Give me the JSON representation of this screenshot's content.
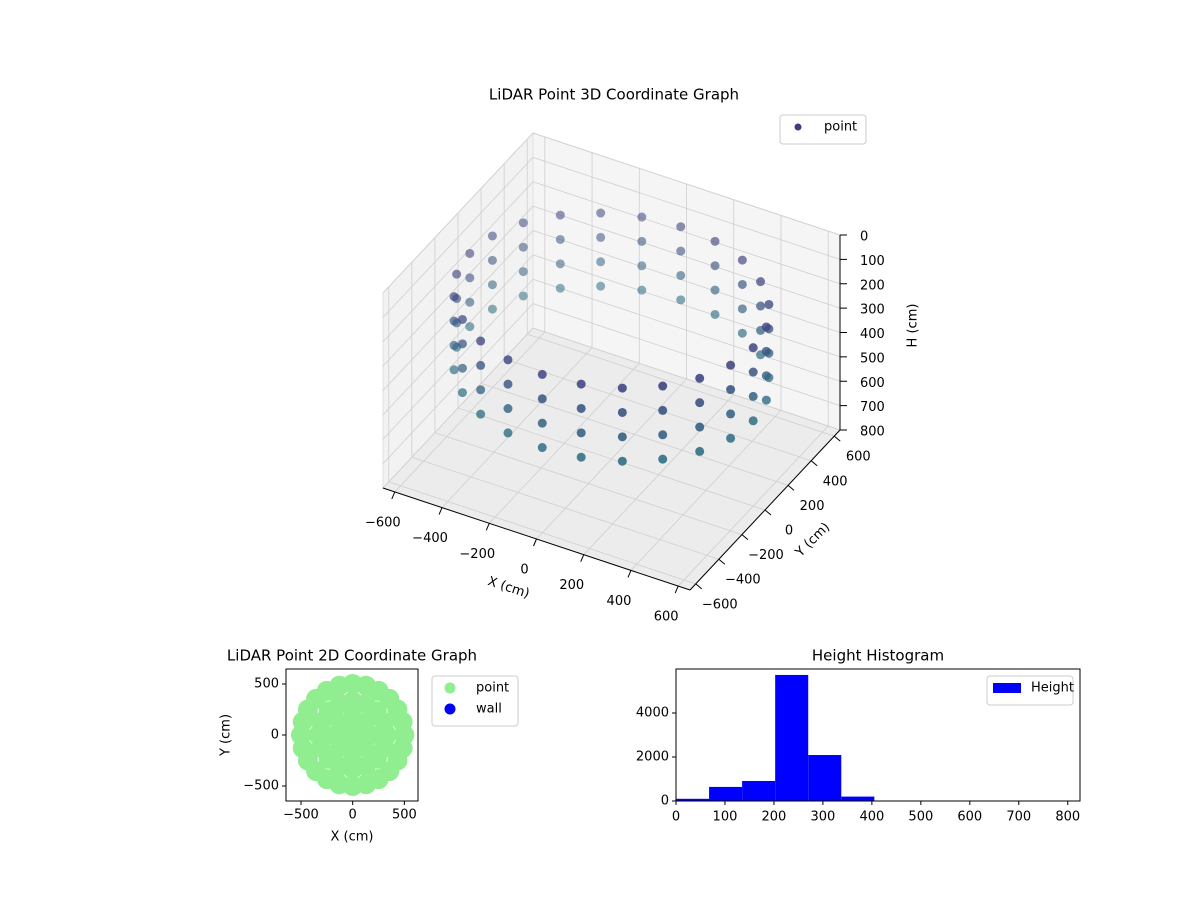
{
  "chart_data": [
    {
      "type": "scatter3d",
      "title": "LiDAR Point 3D Coordinate Graph",
      "xlabel": "X (cm)",
      "ylabel": "Y (cm)",
      "zlabel": "H (cm)",
      "xlim": [
        -650,
        650
      ],
      "ylim": [
        -650,
        650
      ],
      "zlim": [
        0,
        800
      ],
      "z_inverted": true,
      "grid": true,
      "legend": "upper right",
      "xticks": [
        {
          "value": -600,
          "label": "−600"
        },
        {
          "value": -400,
          "label": "−400"
        },
        {
          "value": -200,
          "label": "−200"
        },
        0,
        200,
        400,
        600
      ],
      "yticks": [
        {
          "value": -600,
          "label": "−600"
        },
        {
          "value": -400,
          "label": "−400"
        },
        {
          "value": -200,
          "label": "−200"
        },
        0,
        200,
        400,
        600
      ],
      "zticks": [
        0,
        100,
        200,
        300,
        400,
        500,
        600,
        700,
        800
      ],
      "cmap": [
        "#46317e",
        "#21a086"
      ],
      "series": [
        {
          "name": "point",
          "color": "#443983",
          "x": [
            600,
            580,
            520,
            424,
            300,
            155,
            0,
            -155,
            -300,
            -424,
            -520,
            -580,
            -600,
            -580,
            -520,
            -424,
            -300,
            -155,
            0,
            155,
            300,
            424,
            520,
            580,
            600,
            580,
            520,
            424,
            300,
            155,
            0,
            -155,
            -300,
            -424,
            -520,
            -580,
            -600,
            -580,
            -520,
            -424,
            -300,
            -155,
            0,
            155,
            300,
            424,
            520,
            580,
            600,
            580,
            520,
            424,
            300,
            155,
            0,
            -155,
            -300,
            -424,
            -520,
            -580,
            -600,
            -580,
            -520,
            -424,
            -300,
            -155,
            0,
            155,
            300,
            424,
            520,
            580,
            600,
            580,
            520,
            424,
            300,
            155,
            0,
            -155,
            -300,
            -424,
            -520,
            -580,
            -600,
            -580,
            -520,
            -424,
            -300,
            -155,
            0,
            155,
            300,
            424,
            520,
            580
          ],
          "y": [
            0,
            155,
            300,
            424,
            520,
            580,
            600,
            580,
            520,
            424,
            300,
            155,
            0,
            -155,
            -300,
            -424,
            -520,
            -580,
            -600,
            -580,
            -520,
            -424,
            -300,
            -155,
            0,
            155,
            300,
            424,
            520,
            580,
            600,
            580,
            520,
            424,
            300,
            155,
            0,
            -155,
            -300,
            -424,
            -520,
            -580,
            -600,
            -580,
            -520,
            -424,
            -300,
            -155,
            0,
            155,
            300,
            424,
            520,
            580,
            600,
            580,
            520,
            424,
            300,
            155,
            0,
            -155,
            -300,
            -424,
            -520,
            -580,
            -600,
            -580,
            -520,
            -424,
            -300,
            -155,
            0,
            155,
            300,
            424,
            520,
            580,
            600,
            580,
            520,
            424,
            300,
            155,
            0,
            -155,
            -300,
            -424,
            -520,
            -580,
            -600,
            -580,
            -520,
            -424,
            -300,
            -155
          ],
          "z": [
            150,
            150,
            150,
            150,
            150,
            150,
            150,
            150,
            150,
            150,
            150,
            150,
            150,
            150,
            150,
            150,
            150,
            150,
            150,
            150,
            150,
            150,
            150,
            150,
            250,
            250,
            250,
            250,
            250,
            250,
            250,
            250,
            250,
            250,
            250,
            250,
            250,
            250,
            250,
            250,
            250,
            250,
            250,
            250,
            250,
            250,
            250,
            250,
            350,
            350,
            350,
            350,
            350,
            350,
            350,
            350,
            350,
            350,
            350,
            350,
            350,
            350,
            350,
            350,
            350,
            350,
            350,
            350,
            350,
            350,
            350,
            350,
            450,
            450,
            450,
            450,
            450,
            450,
            450,
            450,
            450,
            450,
            450,
            450,
            450,
            450,
            450,
            450,
            450,
            450,
            450,
            450,
            450,
            450,
            450,
            450
          ]
        }
      ]
    },
    {
      "type": "scatter",
      "title": "LiDAR Point 2D Coordinate Graph",
      "xlabel": "X (cm)",
      "ylabel": "Y (cm)",
      "xlim": [
        -645,
        632
      ],
      "ylim": [
        -647,
        647
      ],
      "legend": "outside upper right",
      "xticks": [
        {
          "value": -500,
          "label": "−500"
        },
        0,
        500
      ],
      "yticks": [
        {
          "value": -500,
          "label": "−500"
        },
        0,
        500
      ],
      "series": [
        {
          "name": "point",
          "color": "#90ee90",
          "x": [
            500,
            483,
            433,
            354,
            250,
            129,
            0,
            -129,
            -250,
            -354,
            -433,
            -483,
            -500,
            -483,
            -433,
            -354,
            -250,
            -129,
            0,
            129,
            250,
            354,
            433,
            483,
            330,
            305,
            233,
            126,
            0,
            -126,
            -233,
            -305,
            -330,
            -305,
            -233,
            -126,
            0,
            126,
            233,
            305,
            165,
            117,
            0,
            -117,
            -165,
            -117,
            0,
            117,
            0
          ],
          "y": [
            0,
            129,
            250,
            354,
            433,
            483,
            500,
            483,
            433,
            354,
            250,
            129,
            0,
            -129,
            -250,
            -354,
            -433,
            -483,
            -500,
            -483,
            -433,
            -354,
            -250,
            -129,
            0,
            126,
            233,
            305,
            330,
            305,
            233,
            126,
            0,
            -126,
            -233,
            -305,
            -330,
            -305,
            -233,
            -126,
            0,
            117,
            165,
            117,
            0,
            -117,
            -165,
            -117,
            0
          ]
        },
        {
          "name": "wall",
          "color": "#0000ff",
          "x": [],
          "y": []
        }
      ]
    },
    {
      "type": "histogram",
      "title": "Height Histogram",
      "xlim": [
        0,
        825
      ],
      "ylim": [
        0,
        6000
      ],
      "legend": "upper right",
      "xticks": [
        0,
        100,
        200,
        300,
        400,
        500,
        600,
        700,
        800
      ],
      "yticks": [
        0,
        2000,
        4000
      ],
      "bins": [
        0,
        67.5,
        135,
        202.5,
        270,
        337.5,
        405,
        472.5,
        540,
        607.5,
        675,
        742.5,
        810
      ],
      "series": [
        {
          "name": "Height",
          "color": "#0000ff",
          "values": [
            100,
            640,
            910,
            5730,
            2090,
            200,
            10,
            5,
            5,
            5,
            5,
            5
          ]
        }
      ]
    }
  ]
}
